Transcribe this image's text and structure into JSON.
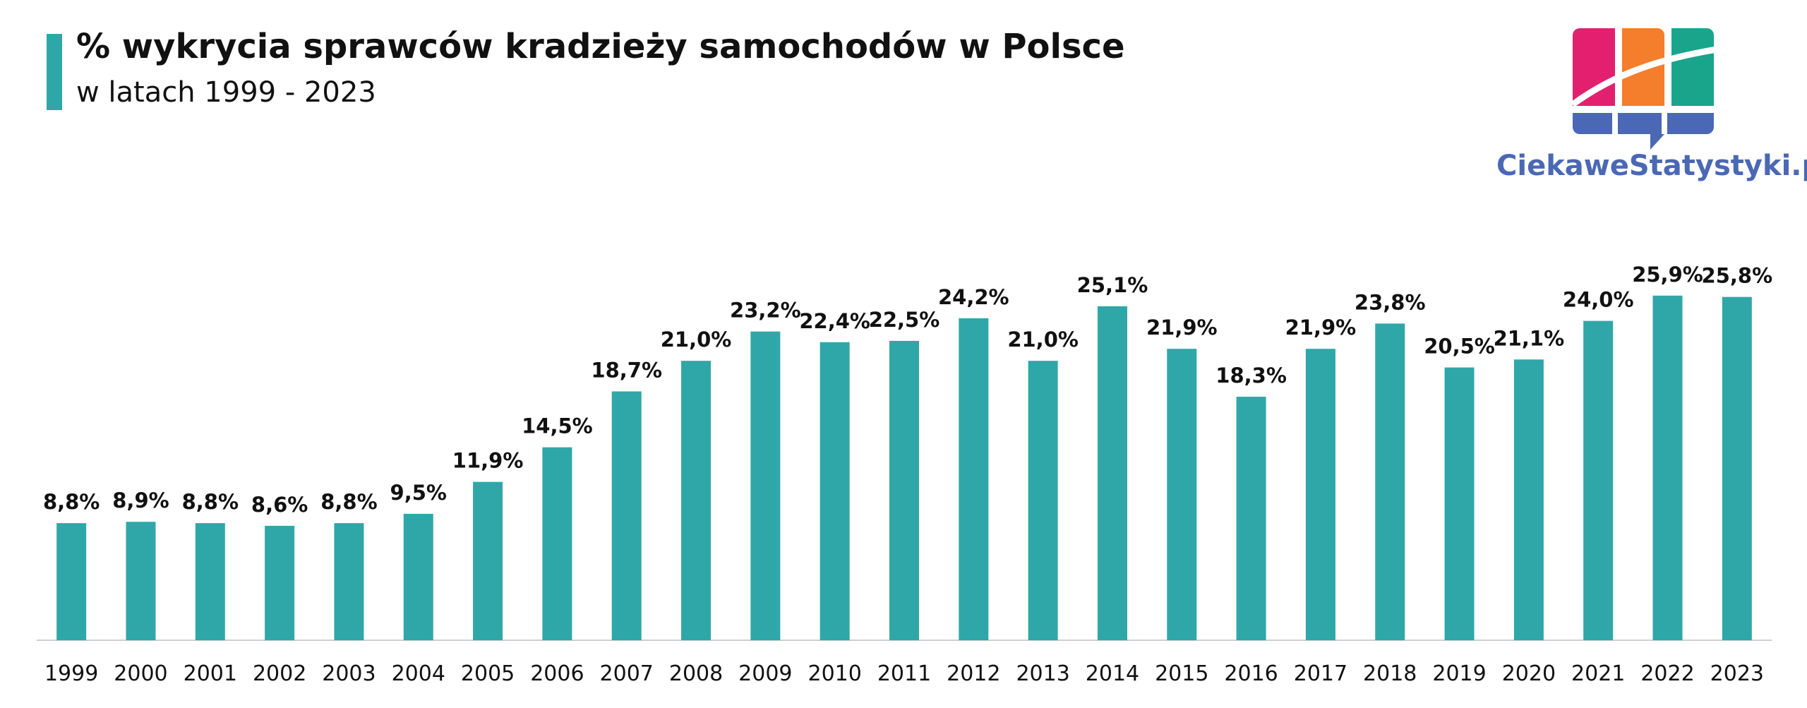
{
  "header": {
    "title": "% wykrycia sprawców kradzieży samochodów w Polsce",
    "subtitle": "w latach 1999 - 2023"
  },
  "logo": {
    "text": "CiekaweStatystyki.pl",
    "colors": [
      "#e3206f",
      "#f47e2b",
      "#19a58b",
      "#4a68b4"
    ]
  },
  "chart_data": {
    "type": "bar",
    "title": "% wykrycia sprawców kradzieży samochodów w Polsce",
    "subtitle": "w latach 1999 - 2023",
    "xlabel": "",
    "ylabel": "",
    "grid": false,
    "legend": "none",
    "ylim": [
      0,
      30
    ],
    "bar_color": "#2fa7a8",
    "axis_color": "#d0d0d0",
    "categories": [
      "1999",
      "2000",
      "2001",
      "2002",
      "2003",
      "2004",
      "2005",
      "2006",
      "2007",
      "2008",
      "2009",
      "2010",
      "2011",
      "2012",
      "2013",
      "2014",
      "2015",
      "2016",
      "2017",
      "2018",
      "2019",
      "2020",
      "2021",
      "2022",
      "2023"
    ],
    "values": [
      8.8,
      8.9,
      8.8,
      8.6,
      8.8,
      9.5,
      11.9,
      14.5,
      18.7,
      21.0,
      23.2,
      22.4,
      22.5,
      24.2,
      21.0,
      25.1,
      21.9,
      18.3,
      21.9,
      23.8,
      20.5,
      21.1,
      24.0,
      25.9,
      25.8
    ],
    "data_labels": [
      "8,8%",
      "8,9%",
      "8,8%",
      "8,6%",
      "8,8%",
      "9,5%",
      "11,9%",
      "14,5%",
      "18,7%",
      "21,0%",
      "23,2%",
      "22,4%",
      "22,5%",
      "24,2%",
      "21,0%",
      "25,1%",
      "21,9%",
      "18,3%",
      "21,9%",
      "23,8%",
      "20,5%",
      "21,1%",
      "24,0%",
      "25,9%",
      "25,8%"
    ]
  }
}
